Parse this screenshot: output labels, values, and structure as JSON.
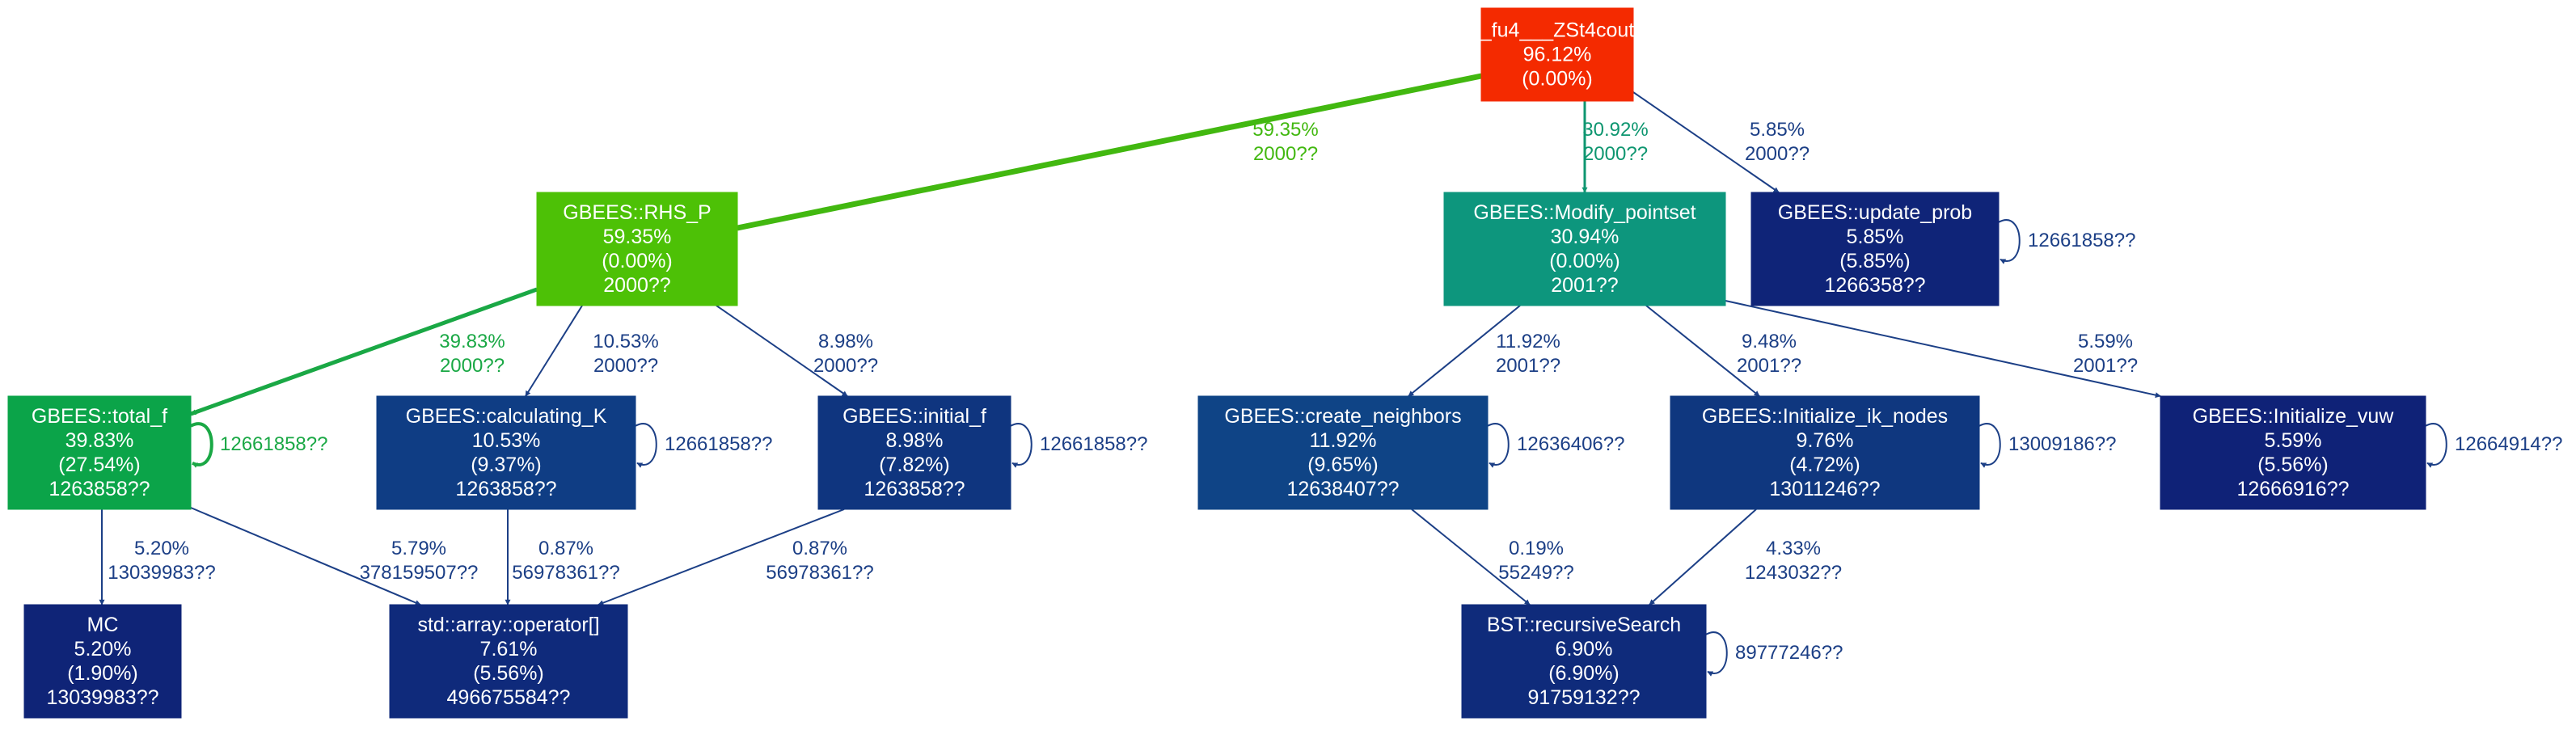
{
  "nodes": [
    {
      "id": "fu4",
      "color": "#f42a00",
      "lines": [
        "_fu4___ZSt4cout",
        "96.12%",
        "(0.00%)"
      ]
    },
    {
      "id": "rhs_p",
      "color": "#4dc106",
      "lines": [
        "GBEES::RHS_P",
        "59.35%",
        "(0.00%)",
        "2000??"
      ]
    },
    {
      "id": "modify_pointset",
      "color": "#0d967d",
      "lines": [
        "GBEES::Modify_pointset",
        "30.94%",
        "(0.00%)",
        "2001??"
      ]
    },
    {
      "id": "update_prob",
      "color": "#0f2478",
      "lines": [
        "GBEES::update_prob",
        "5.85%",
        "(5.85%)",
        "1266358??"
      ]
    },
    {
      "id": "total_f",
      "color": "#0ba449",
      "lines": [
        "GBEES::total_f",
        "39.83%",
        "(27.54%)",
        "1263858??"
      ]
    },
    {
      "id": "calculating_k",
      "color": "#0f3d84",
      "lines": [
        "GBEES::calculating_K",
        "10.53%",
        "(9.37%)",
        "1263858??"
      ]
    },
    {
      "id": "initial_f",
      "color": "#0f357f",
      "lines": [
        "GBEES::initial_f",
        "8.98%",
        "(7.82%)",
        "1263858??"
      ]
    },
    {
      "id": "create_neighbors",
      "color": "#0f4486",
      "lines": [
        "GBEES::create_neighbors",
        "11.92%",
        "(9.65%)",
        "1263840 7??"
      ]
    },
    {
      "id": "init_ik_nodes",
      "color": "#0f377f",
      "lines": [
        "GBEES::Initialize_ik_nodes",
        "9.76%",
        "(4.72%)",
        "1301124 6??"
      ]
    },
    {
      "id": "init_vuw",
      "color": "#0f2277",
      "lines": [
        "GBEES::Initialize_vuw",
        "5.59%",
        "(5.56%)",
        "1266691 6??"
      ]
    },
    {
      "id": "mc",
      "color": "#0f2477",
      "lines": [
        "MC",
        "5.20%",
        "(1.90%)",
        "1303998 3??"
      ]
    },
    {
      "id": "array_op",
      "color": "#0f2a7b",
      "lines": [
        "std::array::operator[]",
        "7.61%",
        "(5.56%)",
        "4966755 84??"
      ]
    },
    {
      "id": "bst",
      "color": "#0f2b7b",
      "lines": [
        "BST::recursiveSearch",
        "6.90%",
        "(6.90%)",
        "9175913 2??"
      ]
    }
  ],
  "edges": [
    {
      "from": "fu4",
      "to": "rhs_p",
      "color": "#42b810",
      "labels": [
        "59.35%",
        "2000??"
      ]
    },
    {
      "from": "fu4",
      "to": "modify_pointset",
      "color": "#0e9670",
      "labels": [
        "30.92%",
        "2000??"
      ]
    },
    {
      "from": "fu4",
      "to": "update_prob",
      "color": "#1c3f86",
      "labels": [
        "5.85%",
        "2000??"
      ]
    },
    {
      "from": "rhs_p",
      "to": "total_f",
      "color": "#1aa845",
      "labels": [
        "39.83%",
        "2000??"
      ]
    },
    {
      "from": "rhs_p",
      "to": "calculating_k",
      "color": "#1c3f86",
      "labels": [
        "10.53%",
        "2000??"
      ]
    },
    {
      "from": "rhs_p",
      "to": "initial_f",
      "color": "#1c3f86",
      "labels": [
        "8.98%",
        "2000??"
      ]
    },
    {
      "from": "modify_pointset",
      "to": "create_neighbors",
      "color": "#1c3f86",
      "labels": [
        "11.92%",
        "2001??"
      ]
    },
    {
      "from": "modify_pointset",
      "to": "init_ik_nodes",
      "color": "#1c3f86",
      "labels": [
        "9.48%",
        "2001??"
      ]
    },
    {
      "from": "modify_pointset",
      "to": "init_vuw",
      "color": "#1c3f86",
      "labels": [
        "5.59%",
        "2001??"
      ]
    },
    {
      "from": "total_f",
      "to": "mc",
      "color": "#1c3f86",
      "labels": [
        "5.20%",
        "13039983??"
      ]
    },
    {
      "from": "total_f",
      "to": "array_op",
      "color": "#1c3f86",
      "labels": [
        "5.79%",
        "378159507??"
      ]
    },
    {
      "from": "calculating_k",
      "to": "array_op",
      "color": "#1c3f86",
      "labels": [
        "0.87%",
        "56978361??"
      ]
    },
    {
      "from": "initial_f",
      "to": "array_op",
      "color": "#1c3f86",
      "labels": [
        "0.87%",
        "56978361??"
      ]
    },
    {
      "from": "create_neighbors",
      "to": "bst",
      "color": "#1c3f86",
      "labels": [
        "0.19%",
        "55249??"
      ]
    },
    {
      "from": "init_ik_nodes",
      "to": "bst",
      "color": "#1c3f86",
      "labels": [
        "4.33%",
        "1243032??"
      ]
    }
  ],
  "self_loops": [
    {
      "node": "update_prob",
      "color": "#1c3f86",
      "label": "12661858??"
    },
    {
      "node": "total_f",
      "color": "#1aa845",
      "label": "12661858??"
    },
    {
      "node": "calculating_k",
      "color": "#1c3f86",
      "label": "12661858??"
    },
    {
      "node": "initial_f",
      "color": "#1c3f86",
      "label": "12661858??"
    },
    {
      "node": "create_neighbors",
      "color": "#1c3f86",
      "label": "12636406??"
    },
    {
      "node": "init_ik_nodes",
      "color": "#1c3f86",
      "label": "13009186??"
    },
    {
      "node": "init_vuw",
      "color": "#1c3f86",
      "label": "12664914??"
    },
    {
      "node": "bst",
      "color": "#1c3f86",
      "label": "89777246??"
    }
  ]
}
